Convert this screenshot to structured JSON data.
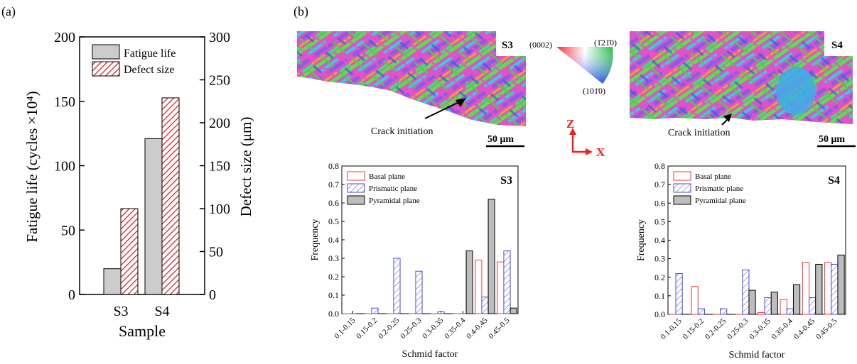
{
  "panels": {
    "a": {
      "label": "(a)"
    },
    "b": {
      "label": "(b)"
    }
  },
  "ebsd": {
    "map_labels": [
      "S3",
      "S4"
    ],
    "crack_label": "Crack initiation",
    "scale_label": "50 μm",
    "ipf": {
      "top_left": "(0002)",
      "top_right": "(1̄21̄0)",
      "bottom": "(101̄0)"
    },
    "axes": {
      "z": "Z",
      "x": "X"
    },
    "colors": {
      "axis_red": "#ff1a1a"
    }
  },
  "chart_data": [
    {
      "id": "fatigue",
      "type": "bar",
      "categories": [
        "S3",
        "S4"
      ],
      "xlabel": "Sample",
      "ylabel": "Fatigue life (cycles ×10⁴)",
      "ylabel2": "Defect size (μm)",
      "ylim": [
        0,
        200
      ],
      "ylim2": [
        0,
        300
      ],
      "yticks": [
        0,
        50,
        100,
        150,
        200
      ],
      "yticks2": [
        0,
        50,
        100,
        150,
        200,
        250,
        300
      ],
      "legend_position": "top-left",
      "series": [
        {
          "name": "Fatigue life",
          "axis": "left",
          "values": [
            20,
            121
          ],
          "fill": "#cccccc",
          "pattern": "none"
        },
        {
          "name": "Defect size",
          "axis": "right",
          "values": [
            100,
            229
          ],
          "fill": "#d62728",
          "pattern": "hatch"
        }
      ]
    },
    {
      "id": "schmid_s3",
      "type": "bar",
      "title": "S3",
      "categories": [
        "0.1-0.15",
        "0.15-0.2",
        "0.2-0.25",
        "0.25-0.3",
        "0.3-0.35",
        "0.35-0.4",
        "0.4-0.45",
        "0.45-0.5"
      ],
      "xlabel": "Schmid factor",
      "ylabel": "Frequency",
      "ylim": [
        0,
        0.8
      ],
      "yticks": [
        0.0,
        0.1,
        0.2,
        0.3,
        0.4,
        0.5,
        0.6,
        0.7,
        0.8
      ],
      "legend_position": "top-left",
      "series": [
        {
          "name": "Basal plane",
          "values": [
            0.0,
            0.0,
            0.0,
            0.0,
            0.0,
            0.0,
            0.29,
            0.28
          ],
          "color": "#e8393a",
          "pattern": "open"
        },
        {
          "name": "Prismatic plane",
          "values": [
            0.0,
            0.03,
            0.3,
            0.23,
            0.01,
            0.0,
            0.09,
            0.34
          ],
          "color": "#4a4ae0",
          "pattern": "hatch"
        },
        {
          "name": "Pyramidal plane",
          "values": [
            0.0,
            0.0,
            0.0,
            0.0,
            0.0,
            0.34,
            0.62,
            0.03
          ],
          "color": "#bdbdbd",
          "pattern": "solid"
        }
      ]
    },
    {
      "id": "schmid_s4",
      "type": "bar",
      "title": "S4",
      "categories": [
        "0.1-0.15",
        "0.15-0.2",
        "0.2-0.25",
        "0.25-0.3",
        "0.3-0.35",
        "0.35-0.4",
        "0.4-0.45",
        "0.45-0.5"
      ],
      "xlabel": "Schmid factor",
      "ylabel": "Frequency",
      "ylim": [
        0,
        0.8
      ],
      "yticks": [
        0.0,
        0.1,
        0.2,
        0.3,
        0.4,
        0.5,
        0.6,
        0.7,
        0.8
      ],
      "legend_position": "top-left",
      "series": [
        {
          "name": "Basal plane",
          "values": [
            0.0,
            0.15,
            0.0,
            0.0,
            0.01,
            0.08,
            0.28,
            0.28
          ],
          "color": "#e8393a",
          "pattern": "open"
        },
        {
          "name": "Prismatic plane",
          "values": [
            0.22,
            0.03,
            0.03,
            0.24,
            0.09,
            0.03,
            0.09,
            0.27
          ],
          "color": "#4a4ae0",
          "pattern": "hatch"
        },
        {
          "name": "Pyramidal plane",
          "values": [
            0.0,
            0.0,
            0.0,
            0.13,
            0.12,
            0.16,
            0.27,
            0.32
          ],
          "color": "#bdbdbd",
          "pattern": "solid"
        }
      ]
    }
  ]
}
